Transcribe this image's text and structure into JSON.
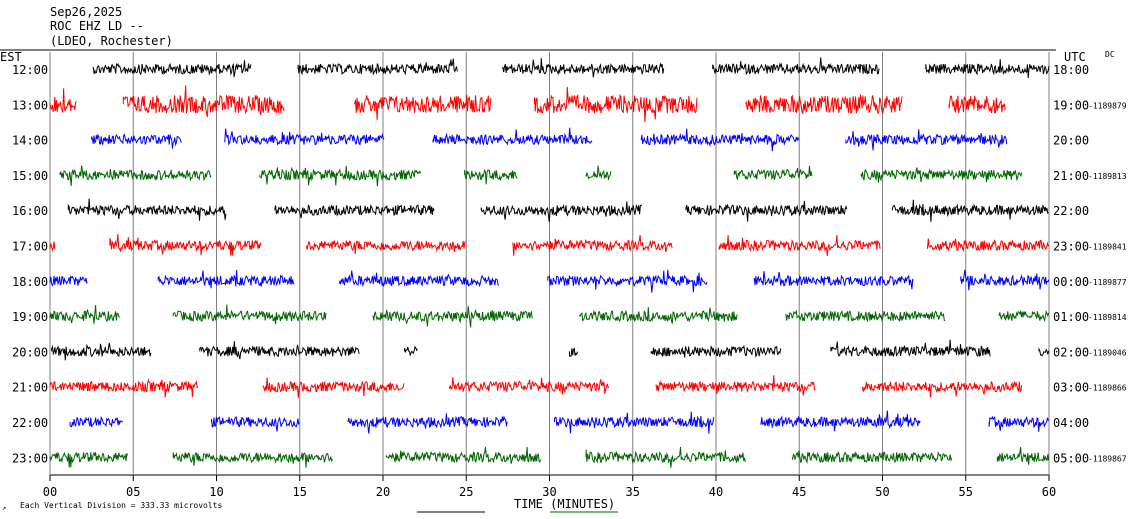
{
  "header": {
    "date": "Sep26,2025",
    "station": "ROC EHZ LD --",
    "network": "(LDEO, Rochester)"
  },
  "labels": {
    "left_zone": "EST",
    "right_zone": "UTC",
    "dc": "DC",
    "scale_note": "Each Vertical Division =  333.33 microvolts"
  },
  "chart_data": {
    "type": "line",
    "title": "",
    "xlabel": "TIME (MINUTES)",
    "ylabel": "",
    "xlim": [
      0,
      60
    ],
    "x_ticks": [
      "00",
      "05",
      "10",
      "15",
      "20",
      "25",
      "30",
      "35",
      "40",
      "45",
      "50",
      "55",
      "60"
    ],
    "grid": true,
    "rows": [
      {
        "est": "12:00",
        "utc": "18:00",
        "dc": "",
        "color": "#000000",
        "segments": [
          [
            2.6,
            12.1
          ],
          [
            14.9,
            24.5
          ],
          [
            27.2,
            36.9
          ],
          [
            39.8,
            49.8
          ],
          [
            52.6,
            60.0
          ]
        ]
      },
      {
        "est": "13:00",
        "utc": "19:00",
        "dc": "-1189879",
        "color": "#ff0000",
        "segments": [
          [
            0.0,
            1.6
          ],
          [
            4.4,
            14.1
          ],
          [
            18.3,
            26.5
          ],
          [
            29.1,
            38.9
          ],
          [
            41.8,
            51.2
          ],
          [
            54.0,
            57.4
          ]
        ]
      },
      {
        "est": "14:00",
        "utc": "20:00",
        "dc": "",
        "color": "#0000ff",
        "segments": [
          [
            2.5,
            7.9
          ],
          [
            10.5,
            20.1
          ],
          [
            23.0,
            32.6
          ],
          [
            35.5,
            45.0
          ],
          [
            47.8,
            57.5
          ]
        ]
      },
      {
        "est": "15:00",
        "utc": "21:00",
        "dc": "-1189813",
        "color": "#006400",
        "segments": [
          [
            0.6,
            9.7
          ],
          [
            12.6,
            22.3
          ],
          [
            24.9,
            28.1
          ],
          [
            32.2,
            33.7
          ],
          [
            41.1,
            45.8
          ],
          [
            48.7,
            58.4
          ]
        ]
      },
      {
        "est": "16:00",
        "utc": "22:00",
        "dc": "",
        "color": "#000000",
        "segments": [
          [
            1.1,
            10.6
          ],
          [
            13.5,
            23.1
          ],
          [
            25.9,
            35.6
          ],
          [
            38.2,
            47.9
          ],
          [
            50.6,
            60.0
          ]
        ]
      },
      {
        "est": "17:00",
        "utc": "23:00",
        "dc": "-1189841",
        "color": "#ff0000",
        "segments": [
          [
            0.0,
            0.3
          ],
          [
            3.6,
            12.7
          ],
          [
            15.4,
            25.0
          ],
          [
            27.8,
            37.4
          ],
          [
            40.2,
            49.9
          ],
          [
            52.7,
            60.0
          ]
        ]
      },
      {
        "est": "18:00",
        "utc": "00:00",
        "dc": "-1189877",
        "color": "#0000ff",
        "segments": [
          [
            0.0,
            2.3
          ],
          [
            6.5,
            14.7
          ],
          [
            17.4,
            27.0
          ],
          [
            29.9,
            39.5
          ],
          [
            42.3,
            51.9
          ],
          [
            54.7,
            60.0
          ]
        ]
      },
      {
        "est": "19:00",
        "utc": "01:00",
        "dc": "-1189814",
        "color": "#006400",
        "segments": [
          [
            0.0,
            4.2
          ],
          [
            7.4,
            16.6
          ],
          [
            19.4,
            29.0
          ],
          [
            31.8,
            41.3
          ],
          [
            44.2,
            53.8
          ],
          [
            57.0,
            60.0
          ]
        ]
      },
      {
        "est": "20:00",
        "utc": "02:00",
        "dc": "-1189046",
        "color": "#000000",
        "segments": [
          [
            0.1,
            6.1
          ],
          [
            9.0,
            18.6
          ],
          [
            21.3,
            22.1
          ],
          [
            31.2,
            31.7
          ],
          [
            36.1,
            43.9
          ],
          [
            46.9,
            56.5
          ],
          [
            59.4,
            60.0
          ]
        ]
      },
      {
        "est": "21:00",
        "utc": "03:00",
        "dc": "-1189866",
        "color": "#ff0000",
        "segments": [
          [
            0.0,
            8.9
          ],
          [
            12.8,
            21.3
          ],
          [
            24.0,
            33.6
          ],
          [
            36.4,
            46.0
          ],
          [
            48.8,
            58.4
          ]
        ]
      },
      {
        "est": "22:00",
        "utc": "04:00",
        "dc": "",
        "color": "#0000ff",
        "segments": [
          [
            1.2,
            4.4
          ],
          [
            9.7,
            15.0
          ],
          [
            17.9,
            27.5
          ],
          [
            30.3,
            39.9
          ],
          [
            42.7,
            52.3
          ],
          [
            56.4,
            60.0
          ]
        ]
      },
      {
        "est": "23:00",
        "utc": "05:00",
        "dc": "-1189867",
        "color": "#006400",
        "segments": [
          [
            0.0,
            4.7
          ],
          [
            7.4,
            17.0
          ],
          [
            20.2,
            29.5
          ],
          [
            32.2,
            41.8
          ],
          [
            44.6,
            54.2
          ],
          [
            56.9,
            60.0
          ]
        ]
      }
    ]
  }
}
